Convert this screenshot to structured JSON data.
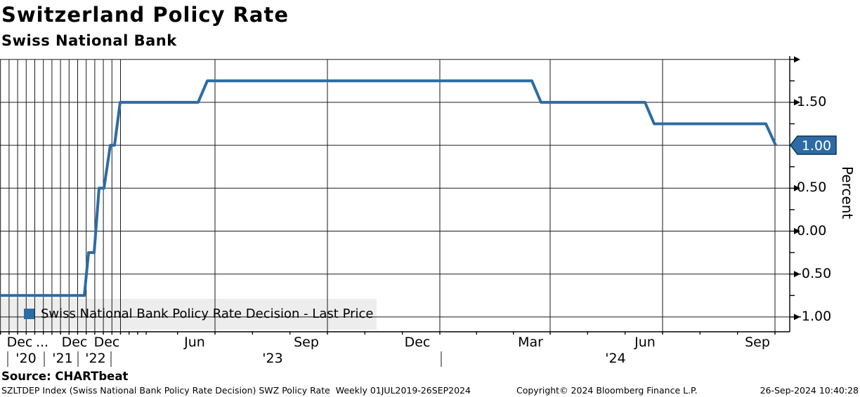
{
  "header": {
    "title": "Switzerland Policy Rate",
    "subtitle": "Swiss National Bank"
  },
  "legend": {
    "label": "Swiss National Bank Policy Rate Decision - Last Price",
    "marker_color": "#2d6ba4"
  },
  "source_line": "Source: CHARTbeat",
  "footer": {
    "left": "SZLTDEP Index (Swiss National Bank Policy Rate Decision) SWZ Policy Rate  Weekly 01JUL2019-26SEP2024",
    "copyright": "Copyright© 2024 Bloomberg Finance L.P.",
    "datetime": "26-Sep-2024 10:40:28"
  },
  "chart_data": {
    "type": "line",
    "style": "step",
    "title": "Switzerland Policy Rate",
    "subtitle": "Swiss National Bank",
    "ylabel": "Percent",
    "ylim": [
      -1.17,
      2.05
    ],
    "grid": true,
    "legend_position": "bottom-left",
    "line_color": "#2d6ba4",
    "last_price": "1.00",
    "last_price_value": 1.0,
    "x_range": "01JUL2019-26SEP2024",
    "frequency": "Weekly",
    "series": [
      {
        "name": "Swiss National Bank Policy Rate Decision - Last Price",
        "color": "#2d6ba4",
        "decisions": [
          {
            "date": "2019-07-01",
            "rate": -0.75
          },
          {
            "date": "2022-06-16",
            "rate": -0.25
          },
          {
            "date": "2022-09-22",
            "rate": 0.5
          },
          {
            "date": "2022-12-15",
            "rate": 1.0
          },
          {
            "date": "2023-03-23",
            "rate": 1.5
          },
          {
            "date": "2023-06-22",
            "rate": 1.75
          },
          {
            "date": "2024-03-21",
            "rate": 1.5
          },
          {
            "date": "2024-06-20",
            "rate": 1.25
          },
          {
            "date": "2024-09-26",
            "rate": 1.0
          }
        ]
      }
    ],
    "polyline_values": [
      -0.75,
      -0.75,
      -0.25,
      -0.25,
      0.5,
      0.5,
      1.0,
      1.0,
      1.5,
      1.5,
      1.75,
      1.75,
      1.5,
      1.5,
      1.25,
      1.25,
      1.0
    ],
    "y_ticks_labeled": [
      {
        "label": "1.50",
        "value": 1.5
      },
      {
        "label": "0.50",
        "value": 0.5
      },
      {
        "label": "0.00",
        "value": 0.0
      },
      {
        "label": "-0.50",
        "value": -0.5
      },
      {
        "label": "-1.00",
        "value": -1.0
      }
    ],
    "y_ticks_major_unlabeled": [
      2.0
    ],
    "y_ticks_minor": [
      1.75,
      1.25,
      0.75,
      0.25,
      -0.25,
      -0.75
    ],
    "x_month_labels": [
      "Dec",
      "...",
      "Dec",
      "Dec",
      "Jun",
      "Sep",
      "Dec",
      "Mar",
      "Jun",
      "Sep"
    ],
    "x_year_labels": [
      "'20",
      "'21",
      "'22",
      "'23",
      "'24"
    ]
  }
}
